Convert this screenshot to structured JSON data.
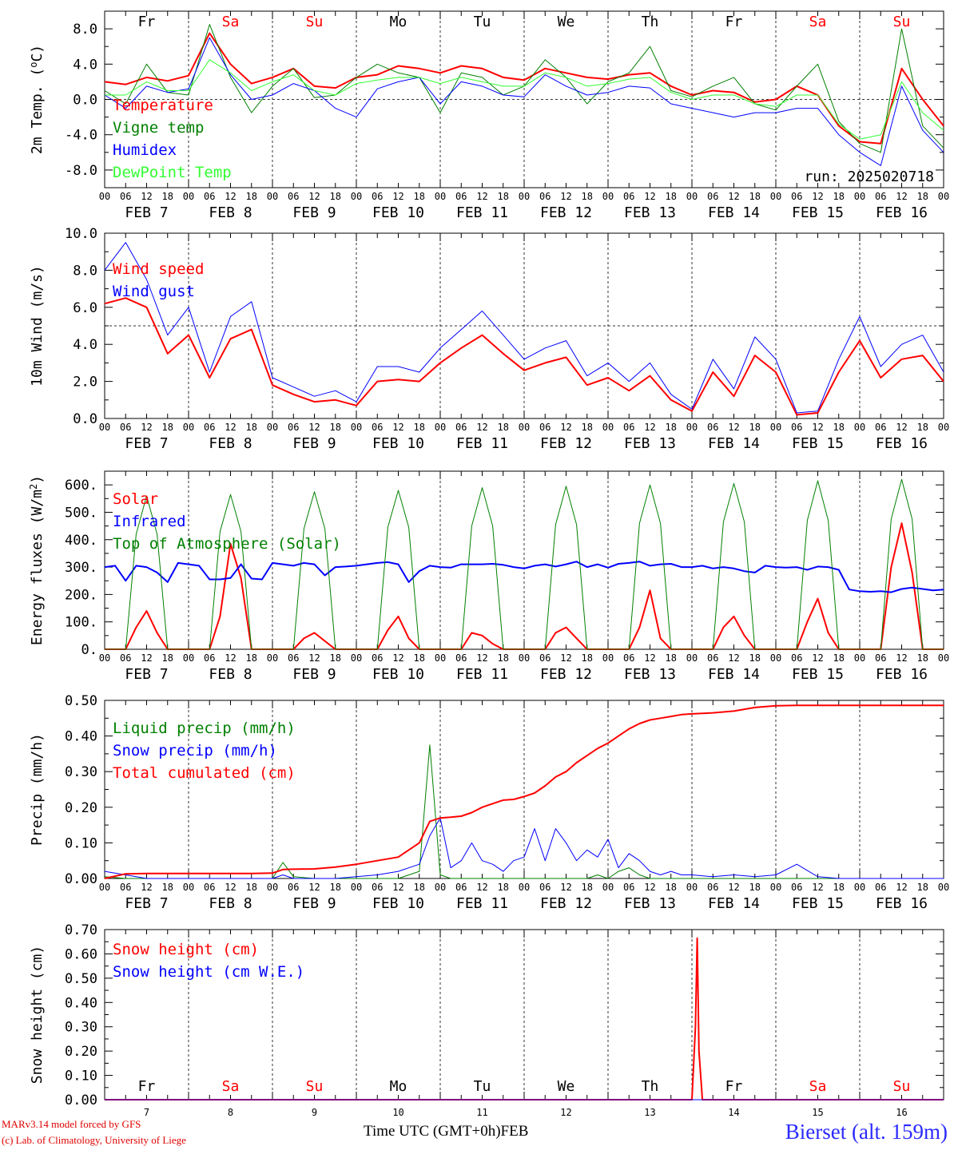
{
  "figure": {
    "station": "Bierset (alt. 159m)",
    "model_credit": "MARv3.14 model forced by GFS",
    "lab_credit": "(c) Lab. of Climatology, University of Liege",
    "xaxis_title": "Time UTC (GMT+0h)",
    "xaxis_month": "FEB",
    "run_label": "run: 2025020718",
    "hour_ticks": [
      "00",
      "06",
      "12",
      "18"
    ],
    "final_hour_label": "00",
    "day_labels": [
      "FEB  7",
      "FEB  8",
      "FEB  9",
      "FEB 10",
      "FEB 11",
      "FEB 12",
      "FEB 13",
      "FEB 14",
      "FEB 15",
      "FEB 16"
    ],
    "weekdays": [
      "Fr",
      "Sa",
      "Su",
      "Mo",
      "Tu",
      "We",
      "Th",
      "Fr",
      "Sa",
      "Su"
    ],
    "weekend_flags": [
      false,
      true,
      true,
      false,
      false,
      false,
      false,
      false,
      true,
      true
    ],
    "day_numbers": [
      "7",
      "8",
      "9",
      "10",
      "11",
      "12",
      "13",
      "14",
      "15",
      "16"
    ],
    "colors": {
      "red": "#ff0000",
      "green": "#008000",
      "blue": "#0000ff",
      "lightgreen": "#33ff33",
      "axis": "#000000"
    }
  },
  "chart_data": [
    {
      "id": "temp",
      "type": "line",
      "ylabel": "2m Temp. (oC)",
      "ylim": [
        -10,
        10
      ],
      "yticks": [
        -8,
        -4,
        0,
        4,
        8
      ],
      "ytick_labels": [
        "-8.0",
        "-4.0",
        "0.0",
        "4.0",
        "8.0"
      ],
      "hlines": [
        0
      ],
      "show_weekdays": "top",
      "x": [
        0,
        6,
        12,
        18,
        24,
        30,
        36,
        42,
        48,
        54,
        60,
        66,
        72,
        78,
        84,
        90,
        96,
        102,
        108,
        114,
        120,
        126,
        132,
        138,
        144,
        150,
        156,
        162,
        168,
        174,
        180,
        186,
        192,
        198,
        204,
        210,
        216,
        222,
        228,
        234,
        240
      ],
      "series": [
        {
          "name": "Temperature",
          "color": "red",
          "width": 2,
          "values": [
            2.0,
            1.7,
            2.5,
            2.1,
            2.7,
            7.5,
            4.0,
            1.8,
            2.5,
            3.5,
            1.5,
            1.3,
            2.5,
            2.8,
            3.8,
            3.5,
            3.0,
            3.8,
            3.5,
            2.5,
            2.2,
            3.5,
            3.0,
            2.5,
            2.3,
            2.8,
            3.0,
            1.5,
            0.5,
            1.0,
            0.8,
            -0.3,
            0.0,
            1.5,
            0.5,
            -3.0,
            -4.8,
            -5.0,
            3.5,
            0.0,
            -3.0
          ]
        },
        {
          "name": "Vigne temp",
          "color": "green",
          "width": 1,
          "values": [
            1.0,
            -0.5,
            4.0,
            0.8,
            0.5,
            8.5,
            2.5,
            -1.5,
            1.5,
            3.5,
            0.2,
            0.5,
            2.5,
            4.0,
            3.0,
            2.5,
            -1.5,
            3.0,
            2.5,
            0.5,
            1.5,
            4.5,
            2.5,
            -0.5,
            2.0,
            3.0,
            6.0,
            1.0,
            0.3,
            1.5,
            2.5,
            -0.5,
            -1.2,
            1.5,
            4.0,
            -2.5,
            -5.0,
            -6.0,
            8.0,
            -3.0,
            -5.5
          ]
        },
        {
          "name": "Humidex",
          "color": "blue",
          "width": 1,
          "values": [
            0.5,
            -1.0,
            1.5,
            0.8,
            1.2,
            7.0,
            2.8,
            0.0,
            0.5,
            1.8,
            1.0,
            -1.0,
            -2.0,
            1.2,
            2.0,
            2.5,
            -0.5,
            2.0,
            1.5,
            0.5,
            0.3,
            2.8,
            1.5,
            0.5,
            0.8,
            1.5,
            1.3,
            -0.5,
            -1.0,
            -1.5,
            -2.0,
            -1.5,
            -1.5,
            -1.0,
            -1.0,
            -4.0,
            -6.0,
            -7.5,
            1.5,
            -3.5,
            -6.0
          ]
        },
        {
          "name": "DewPoint Temp",
          "color": "lightgreen",
          "width": 1,
          "values": [
            0.5,
            0.5,
            2.0,
            1.0,
            1.0,
            4.5,
            3.0,
            1.0,
            2.0,
            2.8,
            1.0,
            0.5,
            1.8,
            2.2,
            2.5,
            2.5,
            1.8,
            2.5,
            2.0,
            1.5,
            1.5,
            3.0,
            2.5,
            1.5,
            1.8,
            2.3,
            2.5,
            0.8,
            0.0,
            0.5,
            0.5,
            -0.5,
            -0.8,
            0.5,
            0.5,
            -2.8,
            -4.5,
            -4.0,
            2.0,
            -1.5,
            -3.5
          ]
        }
      ]
    },
    {
      "id": "wind",
      "type": "line",
      "ylabel": "10m Wind (m/s)",
      "ylim": [
        0,
        10
      ],
      "yticks": [
        0,
        2,
        4,
        6,
        8,
        10
      ],
      "ytick_labels": [
        "0.0",
        "2.0",
        "4.0",
        "6.0",
        "8.0",
        "10.0"
      ],
      "hlines": [
        5
      ],
      "show_weekdays": "none",
      "x": [
        0,
        6,
        12,
        18,
        24,
        30,
        36,
        42,
        48,
        54,
        60,
        66,
        72,
        78,
        84,
        90,
        96,
        102,
        108,
        114,
        120,
        126,
        132,
        138,
        144,
        150,
        156,
        162,
        168,
        174,
        180,
        186,
        192,
        198,
        204,
        210,
        216,
        222,
        228,
        234,
        240
      ],
      "series": [
        {
          "name": "Wind speed",
          "color": "red",
          "width": 2,
          "values": [
            6.2,
            6.5,
            6.0,
            3.5,
            4.5,
            2.2,
            4.3,
            4.8,
            1.8,
            1.3,
            0.9,
            1.0,
            0.7,
            2.0,
            2.1,
            2.0,
            3.0,
            3.8,
            4.5,
            3.5,
            2.6,
            3.0,
            3.3,
            1.8,
            2.2,
            1.5,
            2.3,
            1.0,
            0.4,
            2.5,
            1.2,
            3.4,
            2.5,
            0.2,
            0.3,
            2.5,
            4.2,
            2.2,
            3.2,
            3.4,
            2.0
          ]
        },
        {
          "name": "Wind gust",
          "color": "blue",
          "width": 1,
          "values": [
            8.0,
            9.5,
            7.5,
            4.5,
            6.0,
            2.5,
            5.5,
            6.3,
            2.2,
            1.7,
            1.2,
            1.5,
            0.9,
            2.8,
            2.8,
            2.5,
            3.8,
            4.8,
            5.8,
            4.5,
            3.2,
            3.8,
            4.2,
            2.3,
            3.0,
            2.0,
            3.0,
            1.3,
            0.5,
            3.2,
            1.6,
            4.4,
            3.2,
            0.3,
            0.4,
            3.2,
            5.5,
            2.8,
            4.0,
            4.5,
            2.5
          ]
        }
      ]
    },
    {
      "id": "energy",
      "type": "line",
      "ylabel": "Energy fluxes (W/m2)",
      "ylim": [
        0,
        650
      ],
      "yticks": [
        0,
        100,
        200,
        300,
        400,
        500,
        600
      ],
      "ytick_labels": [
        "0.",
        "100.",
        "200.",
        "300.",
        "400.",
        "500.",
        "600."
      ],
      "hlines": [],
      "show_weekdays": "none",
      "x": [
        0,
        3,
        6,
        9,
        12,
        15,
        18,
        21,
        24,
        27,
        30,
        33,
        36,
        39,
        42,
        45,
        48,
        51,
        54,
        57,
        60,
        63,
        66,
        69,
        72,
        75,
        78,
        81,
        84,
        87,
        90,
        93,
        96,
        99,
        102,
        105,
        108,
        111,
        114,
        117,
        120,
        123,
        126,
        129,
        132,
        135,
        138,
        141,
        144,
        147,
        150,
        153,
        156,
        159,
        162,
        165,
        168,
        171,
        174,
        177,
        180,
        183,
        186,
        189,
        192,
        195,
        198,
        201,
        204,
        207,
        210,
        213,
        216,
        219,
        222,
        225,
        228,
        231,
        234,
        237,
        240
      ],
      "series": [
        {
          "name": "Solar",
          "color": "red",
          "width": 2,
          "values": [
            0,
            0,
            0,
            80,
            140,
            60,
            0,
            0,
            0,
            0,
            0,
            120,
            385,
            260,
            0,
            0,
            0,
            0,
            0,
            40,
            60,
            30,
            0,
            0,
            0,
            0,
            0,
            70,
            120,
            40,
            0,
            0,
            0,
            0,
            0,
            60,
            50,
            20,
            0,
            0,
            0,
            0,
            0,
            60,
            80,
            40,
            0,
            0,
            0,
            0,
            0,
            80,
            215,
            40,
            0,
            0,
            0,
            0,
            0,
            80,
            120,
            50,
            0,
            0,
            0,
            0,
            0,
            100,
            185,
            60,
            0,
            0,
            0,
            0,
            0,
            300,
            460,
            280,
            0,
            0,
            0
          ]
        },
        {
          "name": "Infrared",
          "color": "blue",
          "width": 2,
          "values": [
            300,
            305,
            250,
            305,
            300,
            280,
            245,
            315,
            310,
            305,
            255,
            255,
            260,
            310,
            258,
            255,
            315,
            310,
            305,
            315,
            310,
            270,
            300,
            302,
            305,
            310,
            315,
            318,
            310,
            245,
            285,
            305,
            300,
            298,
            310,
            310,
            310,
            312,
            308,
            300,
            295,
            305,
            310,
            302,
            310,
            320,
            300,
            310,
            298,
            312,
            315,
            320,
            305,
            310,
            312,
            300,
            300,
            305,
            295,
            300,
            295,
            285,
            280,
            305,
            300,
            298,
            300,
            290,
            302,
            300,
            290,
            218,
            212,
            210,
            212,
            208,
            220,
            225,
            220,
            215,
            218
          ]
        },
        {
          "name": "Top of Atmosphere (Solar)",
          "color": "green",
          "width": 1,
          "values": [
            0,
            0,
            0,
            420,
            560,
            420,
            0,
            0,
            0,
            0,
            0,
            430,
            565,
            430,
            0,
            0,
            0,
            0,
            0,
            440,
            575,
            440,
            0,
            0,
            0,
            0,
            0,
            445,
            580,
            445,
            0,
            0,
            0,
            0,
            0,
            450,
            590,
            450,
            0,
            0,
            0,
            0,
            0,
            455,
            595,
            455,
            0,
            0,
            0,
            0,
            0,
            460,
            600,
            460,
            0,
            0,
            0,
            0,
            0,
            465,
            605,
            465,
            0,
            0,
            0,
            0,
            0,
            470,
            615,
            470,
            0,
            0,
            0,
            0,
            0,
            475,
            620,
            475,
            0,
            0,
            0
          ]
        }
      ]
    },
    {
      "id": "precip",
      "type": "line",
      "ylabel": "Precip (mm/h)",
      "ylim": [
        0,
        0.5
      ],
      "yticks": [
        0,
        0.1,
        0.2,
        0.3,
        0.4,
        0.5
      ],
      "ytick_labels": [
        "0.00",
        "0.10",
        "0.20",
        "0.30",
        "0.40",
        "0.50"
      ],
      "hlines": [],
      "show_weekdays": "none",
      "x": [
        0,
        6,
        12,
        18,
        24,
        30,
        36,
        42,
        48,
        51,
        54,
        60,
        66,
        72,
        78,
        84,
        90,
        93,
        96,
        99,
        102,
        105,
        108,
        111,
        114,
        117,
        120,
        123,
        126,
        129,
        132,
        135,
        138,
        141,
        144,
        147,
        150,
        153,
        156,
        159,
        162,
        165,
        168,
        174,
        180,
        186,
        192,
        198,
        204,
        210,
        216,
        222,
        228,
        234,
        240
      ],
      "series": [
        {
          "name": "Liquid precip (mm/h)",
          "color": "green",
          "width": 1,
          "values": [
            0.005,
            0,
            0,
            0,
            0,
            0,
            0,
            0,
            0,
            0.045,
            0.005,
            0,
            0,
            0,
            0,
            0,
            0.02,
            0.375,
            0.01,
            0,
            0,
            0,
            0,
            0,
            0,
            0,
            0,
            0,
            0,
            0,
            0,
            0,
            0,
            0.01,
            0,
            0.02,
            0.03,
            0.01,
            0,
            0,
            0,
            0,
            0,
            0,
            0,
            0,
            0,
            0,
            0,
            0,
            0,
            0,
            0,
            0,
            0
          ]
        },
        {
          "name": "Snow precip (mm/h)",
          "color": "blue",
          "width": 1,
          "values": [
            0.02,
            0.01,
            0,
            0,
            0,
            0,
            0,
            0,
            0,
            0.01,
            0,
            0,
            0,
            0.005,
            0.01,
            0.02,
            0.04,
            0.12,
            0.17,
            0.03,
            0.05,
            0.1,
            0.05,
            0.04,
            0.02,
            0.05,
            0.06,
            0.14,
            0.05,
            0.14,
            0.1,
            0.05,
            0.08,
            0.06,
            0.11,
            0.03,
            0.07,
            0.05,
            0.02,
            0.01,
            0.02,
            0.01,
            0.01,
            0.005,
            0.01,
            0.005,
            0.01,
            0.04,
            0.005,
            0,
            0,
            0,
            0,
            0,
            0
          ]
        },
        {
          "name": "Total cumulated (cm)",
          "color": "red",
          "width": 2,
          "values": [
            0,
            0.013,
            0.014,
            0.014,
            0.014,
            0.014,
            0.014,
            0.014,
            0.015,
            0.025,
            0.026,
            0.027,
            0.032,
            0.04,
            0.05,
            0.06,
            0.1,
            0.16,
            0.17,
            0.172,
            0.175,
            0.185,
            0.2,
            0.21,
            0.22,
            0.222,
            0.23,
            0.24,
            0.26,
            0.285,
            0.3,
            0.325,
            0.345,
            0.365,
            0.38,
            0.4,
            0.42,
            0.435,
            0.445,
            0.45,
            0.455,
            0.46,
            0.462,
            0.465,
            0.47,
            0.48,
            0.485,
            0.486,
            0.486,
            0.486,
            0.486,
            0.486,
            0.486,
            0.486,
            0.486
          ]
        }
      ]
    },
    {
      "id": "snow",
      "type": "line",
      "ylabel": "Snow height (cm)",
      "ylim": [
        0,
        0.7
      ],
      "yticks": [
        0,
        0.1,
        0.2,
        0.3,
        0.4,
        0.5,
        0.6,
        0.7
      ],
      "ytick_labels": [
        "0.00",
        "0.10",
        "0.20",
        "0.30",
        "0.40",
        "0.50",
        "0.60",
        "0.70"
      ],
      "hlines": [],
      "show_weekdays": "bottom",
      "x": [
        0,
        168,
        169,
        169.5,
        170,
        171,
        240
      ],
      "series": [
        {
          "name": "Snow height (cm)",
          "color": "red",
          "width": 2,
          "values": [
            0,
            0,
            0.3,
            0.665,
            0.2,
            0,
            0
          ]
        },
        {
          "name": "Snow height (cm W.E.)",
          "color": "blue",
          "width": 1,
          "values": [
            0,
            0,
            0,
            0,
            0,
            0,
            0
          ]
        }
      ]
    }
  ]
}
